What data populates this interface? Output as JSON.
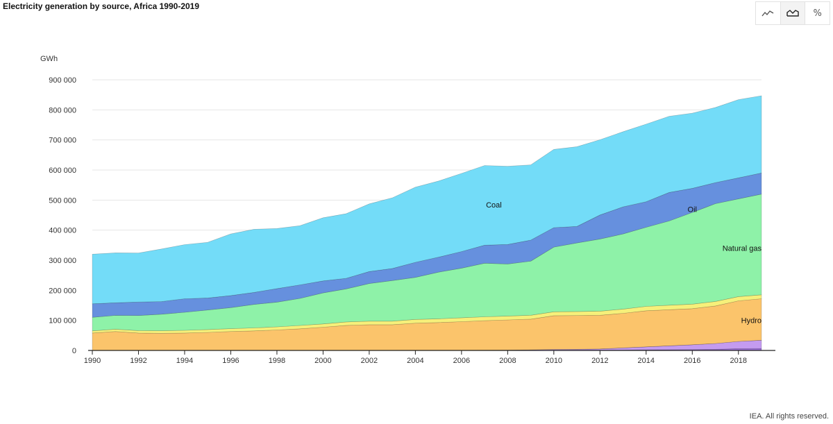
{
  "title": "Electricity generation by source, Africa 1990-2019",
  "toolbar": {
    "buttons": [
      {
        "name": "line-chart-button",
        "icon": "line-chart-icon",
        "active": false
      },
      {
        "name": "area-chart-button",
        "icon": "area-chart-icon",
        "active": true
      },
      {
        "name": "percent-button",
        "icon": "percent-icon",
        "label": "%",
        "active": false
      }
    ]
  },
  "footer": "IEA. All rights reserved.",
  "chart_data": {
    "type": "area",
    "stacked": true,
    "ylabel": "GWh",
    "ylim": [
      0,
      900000
    ],
    "yticks": [
      0,
      100000,
      200000,
      300000,
      400000,
      500000,
      600000,
      700000,
      800000,
      900000
    ],
    "ytick_labels": [
      "0",
      "100 000",
      "200 000",
      "300 000",
      "400 000",
      "500 000",
      "600 000",
      "700 000",
      "800 000",
      "900 000"
    ],
    "xlim": [
      1990,
      2019
    ],
    "xticks": [
      1990,
      1992,
      1994,
      1996,
      1998,
      2000,
      2002,
      2004,
      2006,
      2008,
      2010,
      2012,
      2014,
      2016,
      2018
    ],
    "grid": true,
    "x": [
      1990,
      1991,
      1992,
      1993,
      1994,
      1995,
      1996,
      1997,
      1998,
      1999,
      2000,
      2001,
      2002,
      2003,
      2004,
      2005,
      2006,
      2007,
      2008,
      2009,
      2010,
      2011,
      2012,
      2013,
      2014,
      2015,
      2016,
      2017,
      2018,
      2019
    ],
    "series": [
      {
        "key": "other",
        "color": "#9c6fd8",
        "values": [
          0,
          0,
          0,
          0,
          0,
          0,
          0,
          0,
          0,
          0,
          0,
          0,
          0,
          0,
          0,
          0,
          0,
          0,
          0,
          500,
          1000,
          1000,
          1000,
          1500,
          2000,
          2500,
          3000,
          4000,
          6000,
          7000
        ]
      },
      {
        "key": "solar_wind",
        "color": "#c49bf0",
        "values": [
          0,
          0,
          0,
          0,
          0,
          0,
          0,
          0,
          0,
          0,
          200,
          300,
          500,
          500,
          600,
          700,
          800,
          1000,
          1500,
          1500,
          2500,
          3000,
          4000,
          7000,
          10000,
          13000,
          16000,
          19000,
          24000,
          27000
        ]
      },
      {
        "key": "nuclear",
        "color": "#e4bf2f",
        "values": [
          0,
          0,
          0,
          0,
          0,
          0,
          0,
          0,
          0,
          0,
          0,
          0,
          0,
          0,
          0,
          0,
          0,
          0,
          0,
          0,
          0,
          0,
          0,
          0,
          0,
          0,
          0,
          0,
          0,
          0
        ]
      },
      {
        "key": "hydro",
        "name": "Hydro",
        "color": "#fbc46b",
        "values": [
          58000,
          63000,
          58000,
          57000,
          58000,
          60000,
          63000,
          65000,
          68000,
          72000,
          77000,
          83000,
          85000,
          85000,
          90000,
          92000,
          95000,
          98000,
          100000,
          102000,
          112000,
          112000,
          112000,
          115000,
          120000,
          120000,
          120000,
          125000,
          135000,
          138000
        ]
      },
      {
        "key": "biofuels",
        "name": "",
        "color": "#f6f07a",
        "values": [
          7000,
          7500,
          8000,
          8500,
          9000,
          9500,
          9500,
          10000,
          10500,
          11000,
          11000,
          11500,
          12000,
          12000,
          12500,
          12500,
          13000,
          13000,
          13000,
          13000,
          13000,
          13500,
          13500,
          14000,
          14500,
          15000,
          15000,
          15000,
          14000,
          13000
        ]
      },
      {
        "key": "natural_gas",
        "name": "Natural gas",
        "color": "#8ef2a8",
        "values": [
          45000,
          46000,
          50000,
          55000,
          60000,
          65000,
          70000,
          78000,
          82000,
          90000,
          103000,
          110000,
          125000,
          135000,
          140000,
          155000,
          165000,
          178000,
          173000,
          180000,
          215000,
          228000,
          240000,
          250000,
          263000,
          280000,
          305000,
          325000,
          325000,
          335000
        ]
      },
      {
        "key": "oil",
        "name": "Oil",
        "color": "#6690de",
        "values": [
          45000,
          42000,
          45000,
          42000,
          45000,
          40000,
          40000,
          40000,
          45000,
          45000,
          40000,
          35000,
          40000,
          40000,
          50000,
          50000,
          55000,
          60000,
          65000,
          70000,
          65000,
          55000,
          80000,
          90000,
          85000,
          95000,
          80000,
          70000,
          70000,
          70000
        ]
      },
      {
        "key": "coal",
        "name": "Coal",
        "color": "#73dcf8",
        "values": [
          165000,
          166000,
          163000,
          175000,
          180000,
          185000,
          205000,
          210000,
          200000,
          197000,
          210000,
          215000,
          225000,
          235000,
          250000,
          253000,
          260000,
          265000,
          260000,
          250000,
          260000,
          265000,
          250000,
          250000,
          258000,
          253000,
          250000,
          250000,
          260000,
          257000
        ]
      }
    ],
    "annotations": [
      {
        "text": "Coal",
        "x": 2007.4,
        "y": 485000
      },
      {
        "text": "Oil",
        "x": 2016,
        "y": 470000
      },
      {
        "text": "Natural gas",
        "x": 2019,
        "y": 340000,
        "anchor": "end"
      },
      {
        "text": "Hydro",
        "x": 2019,
        "y": 100000,
        "anchor": "end"
      }
    ]
  }
}
